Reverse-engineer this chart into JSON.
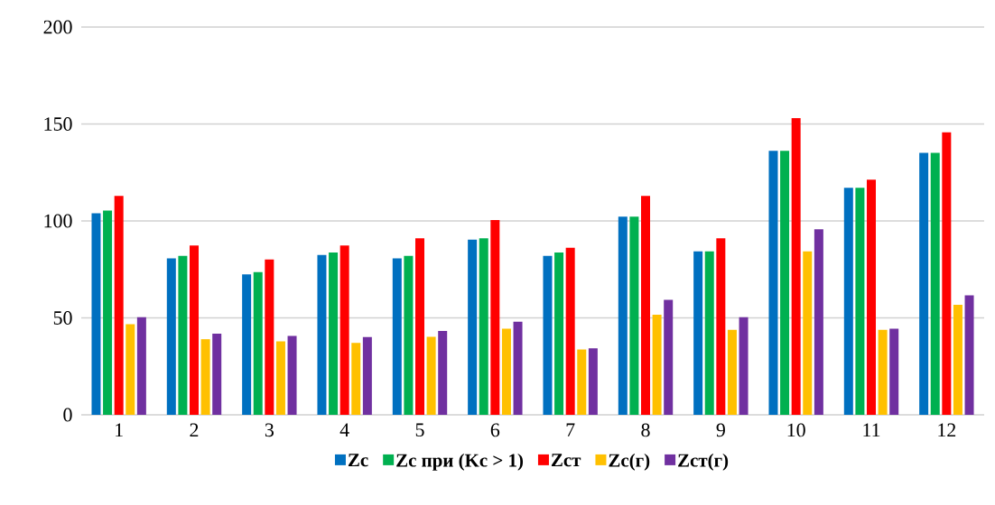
{
  "chart_data": {
    "type": "bar",
    "categories": [
      "1",
      "2",
      "3",
      "4",
      "5",
      "6",
      "7",
      "8",
      "9",
      "10",
      "11",
      "12"
    ],
    "series": [
      {
        "name": "Zc",
        "color": "#0070c0",
        "values": [
          104.0,
          80.7,
          72.4,
          82.5,
          80.7,
          90.4,
          82.0,
          102.2,
          84.3,
          136.2,
          117.1,
          135.1
        ]
      },
      {
        "name": "Zc при (Kc > 1)",
        "color": "#00b050",
        "values": [
          105.3,
          82.0,
          73.6,
          83.7,
          82.0,
          91.0,
          83.7,
          102.2,
          84.3,
          136.2,
          117.1,
          135.1
        ]
      },
      {
        "name": "Zcт",
        "color": "#ff0000",
        "values": [
          112.9,
          87.3,
          80.1,
          87.3,
          91.0,
          100.5,
          86.2,
          112.9,
          91.0,
          153.0,
          121.3,
          145.7
        ]
      },
      {
        "name": "Zc(г)",
        "color": "#ffc000",
        "values": [
          46.7,
          39.0,
          37.9,
          37.1,
          40.2,
          44.4,
          33.7,
          51.6,
          43.8,
          84.3,
          43.8,
          56.8
        ]
      },
      {
        "name": "Zcт(г)",
        "color": "#7030a0",
        "values": [
          50.3,
          41.9,
          40.7,
          40.1,
          43.2,
          48.0,
          34.3,
          59.3,
          50.3,
          95.7,
          44.4,
          61.6
        ]
      }
    ],
    "ylim": [
      0,
      200
    ],
    "yticks": [
      0,
      50,
      100,
      150,
      200
    ],
    "grid": "y",
    "legend": "bottom"
  }
}
